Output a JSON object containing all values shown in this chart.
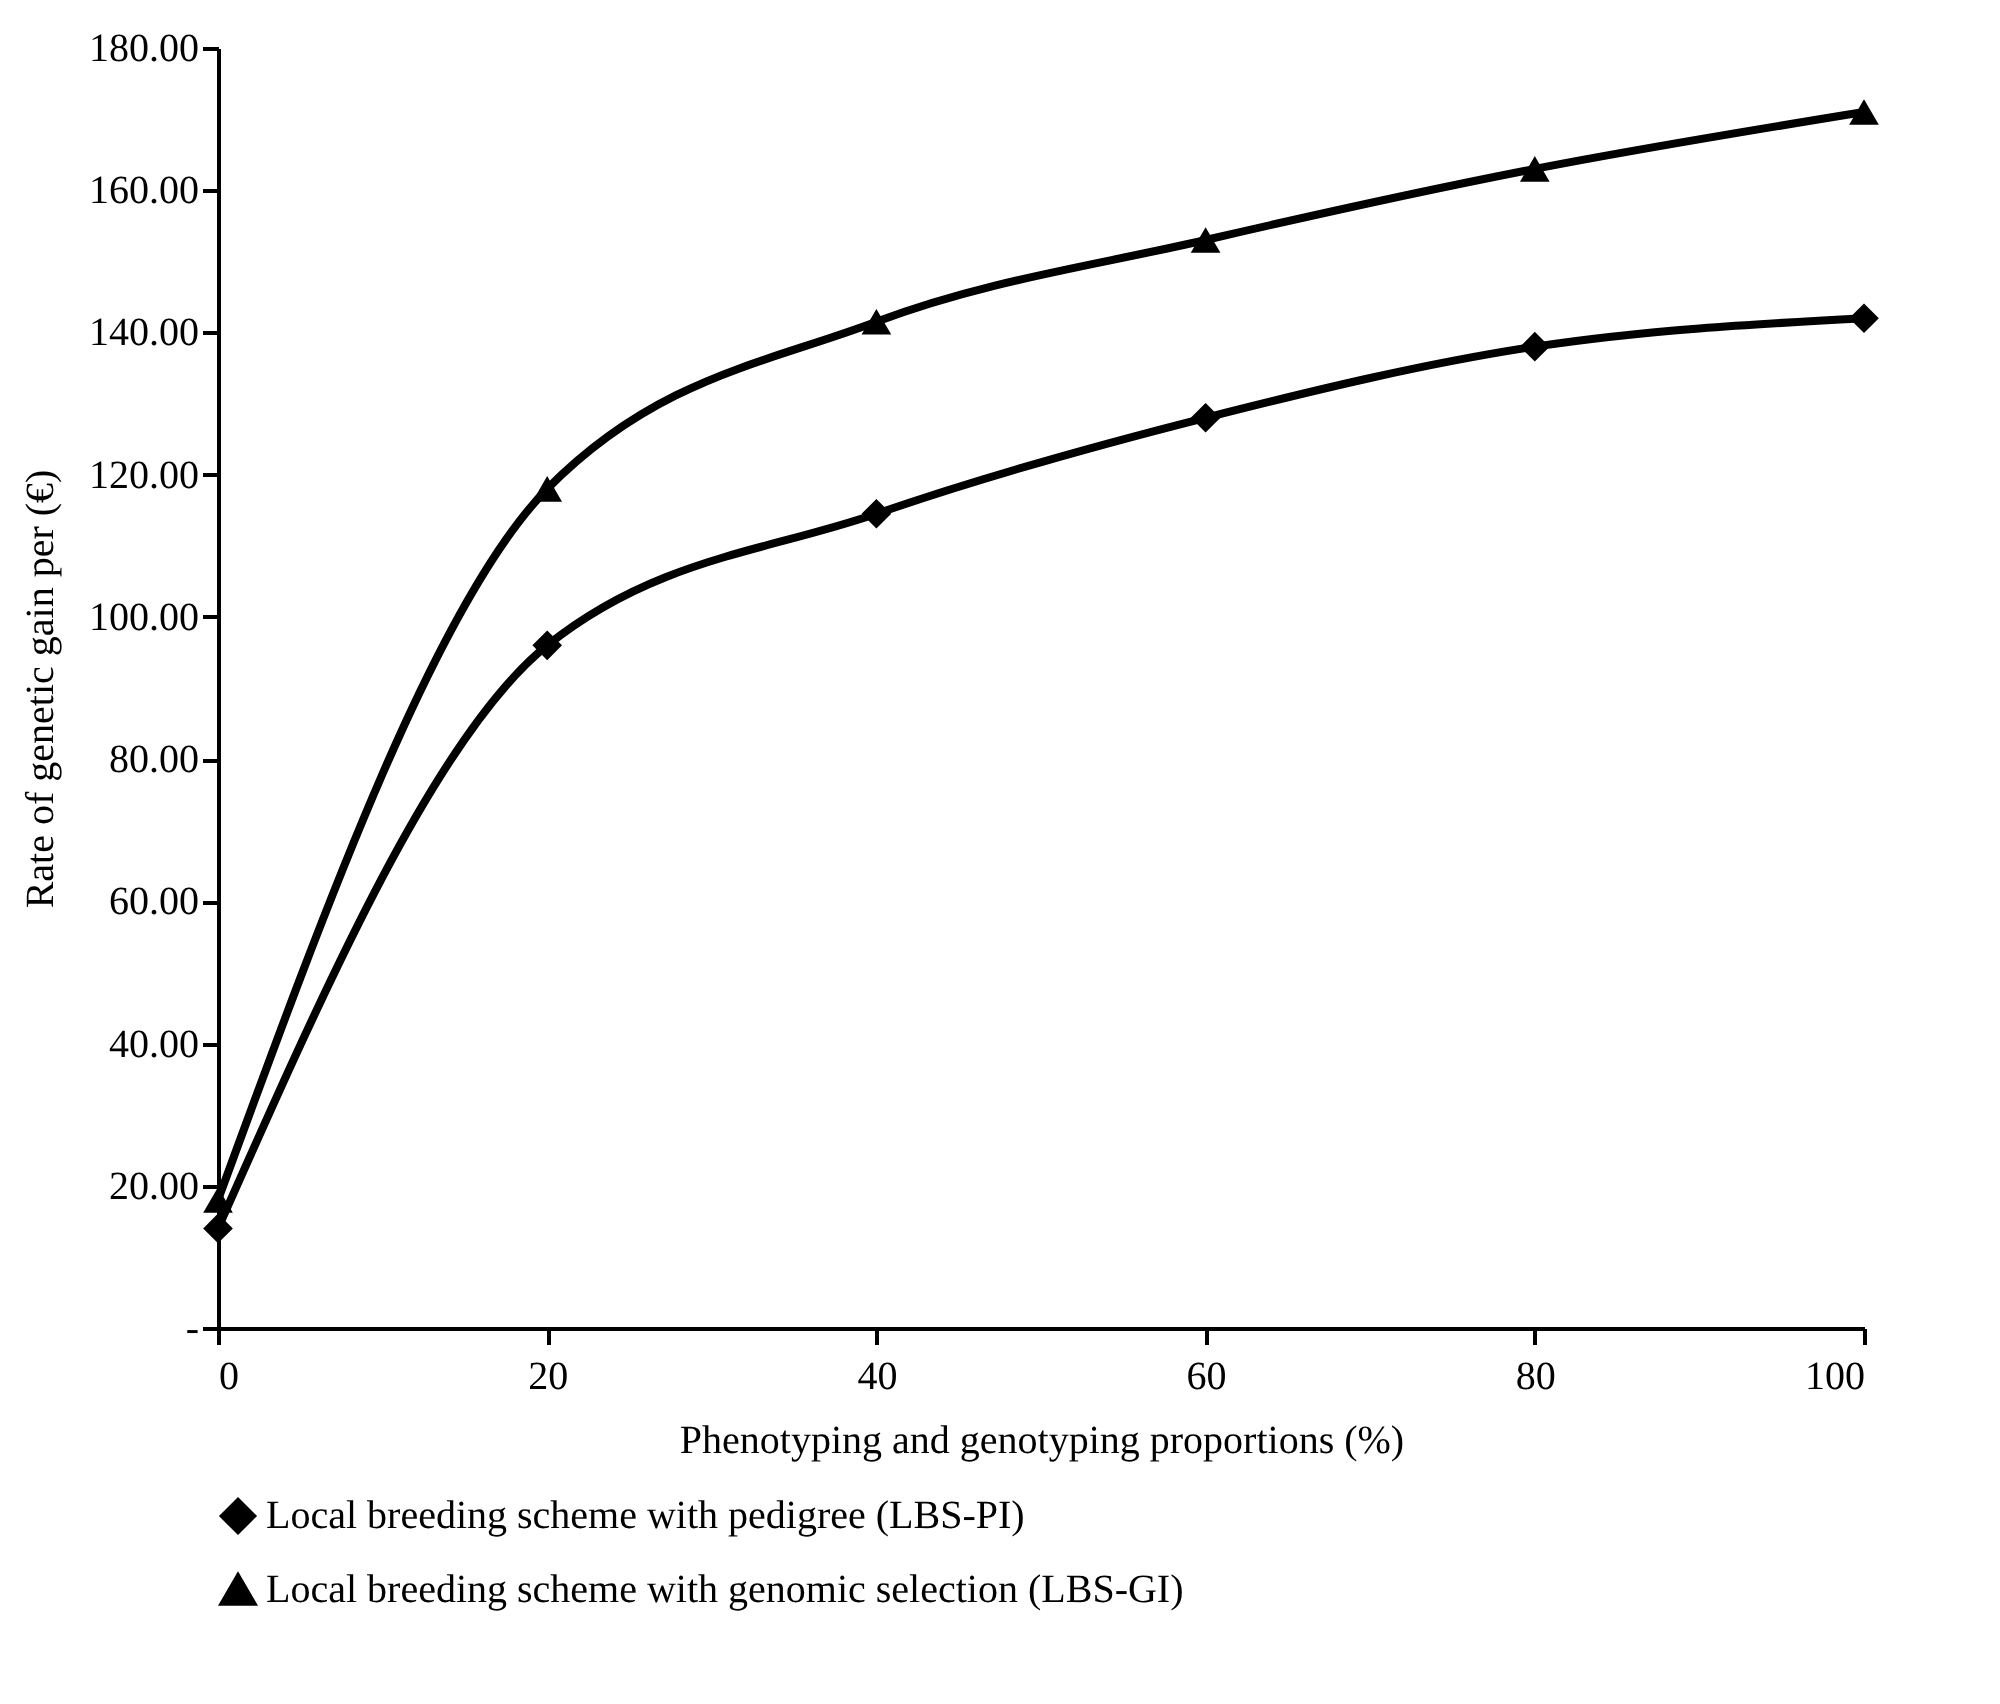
{
  "chart_data": {
    "type": "line",
    "xlabel": "Phenotyping and genotyping proportions (%)",
    "ylabel": "Rate of genetic gain per (€)",
    "x": [
      0,
      20,
      40,
      60,
      80,
      100
    ],
    "series": [
      {
        "name": "Local breeding scheme with pedigree (LBS-PI)",
        "color": "#000000",
        "marker": "diamond",
        "values": [
          14,
          96,
          114.5,
          128,
          138,
          142
        ]
      },
      {
        "name": "Local breeding scheme with genomic selection (LBS-GI)",
        "color": "#000000",
        "marker": "triangle",
        "values": [
          18,
          118,
          141.5,
          153,
          163,
          171
        ]
      }
    ],
    "xlim": [
      0,
      100
    ],
    "xticks": [
      0,
      20,
      40,
      60,
      80,
      100
    ],
    "ylim": [
      0,
      180
    ],
    "yticks": [
      {
        "value": 0,
        "label": "-"
      },
      {
        "value": 20,
        "label": "20.00"
      },
      {
        "value": 40,
        "label": "40.00"
      },
      {
        "value": 60,
        "label": "60.00"
      },
      {
        "value": 80,
        "label": "80.00"
      },
      {
        "value": 100,
        "label": "100.00"
      },
      {
        "value": 120,
        "label": "120.00"
      },
      {
        "value": 140,
        "label": "140.00"
      },
      {
        "value": 160,
        "label": "160.00"
      },
      {
        "value": 180,
        "label": "180.00"
      }
    ],
    "grid": false,
    "legend": "bottom",
    "line_style": "solid"
  }
}
